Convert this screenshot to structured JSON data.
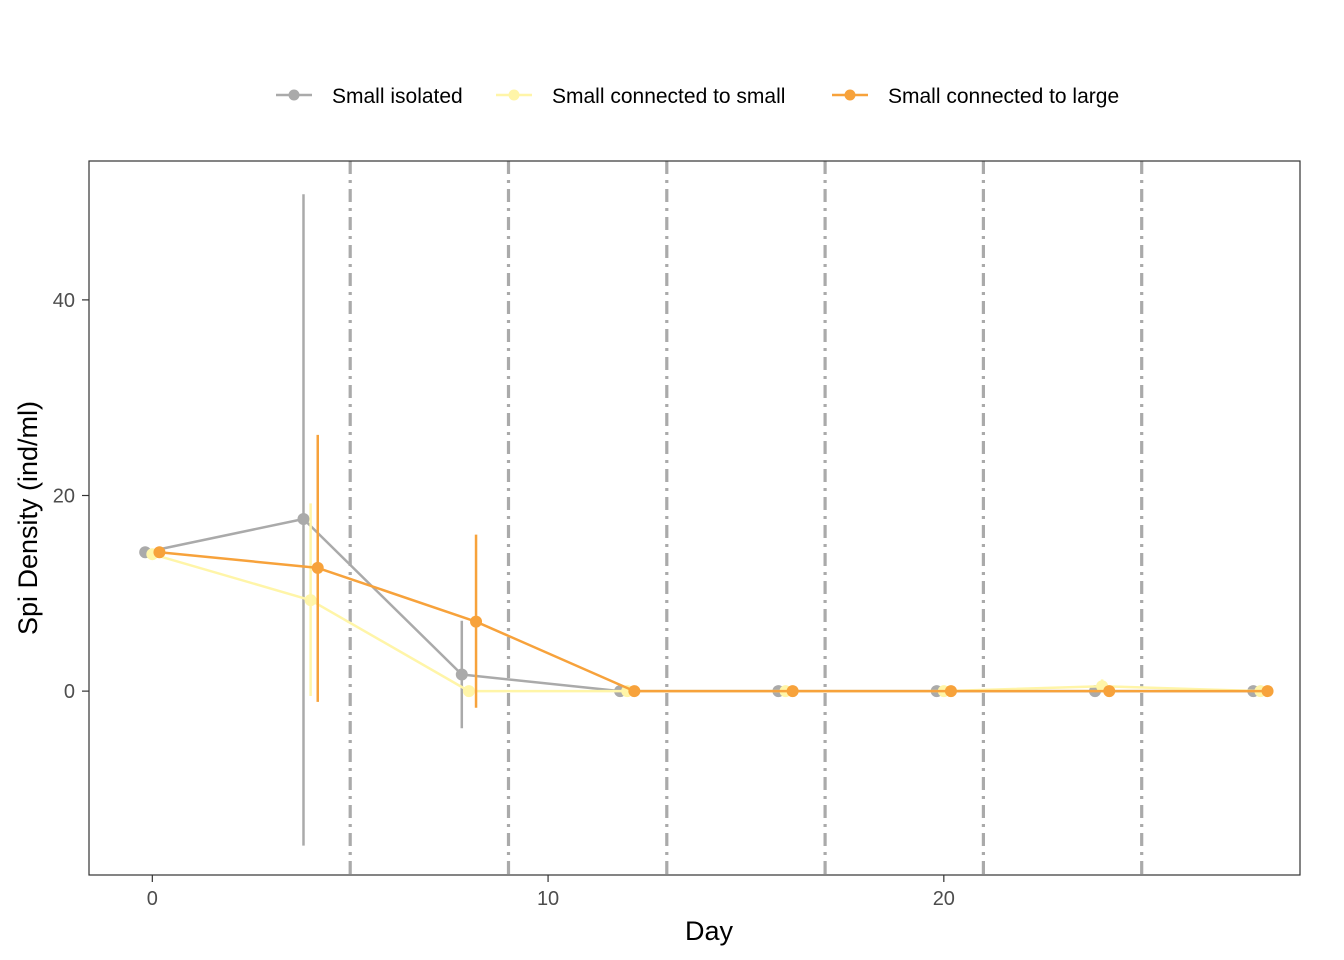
{
  "chart_data": {
    "type": "line",
    "title": "",
    "xlabel": "Day",
    "ylabel": "Spi Density (ind/ml)",
    "xlim": [
      -1.6,
      29
    ],
    "ylim": [
      -18.8,
      54.2
    ],
    "x_ticks": [
      0,
      10,
      20
    ],
    "y_ticks": [
      0,
      20,
      40
    ],
    "grid": false,
    "legend_position": "top",
    "vlines": [
      5,
      9,
      13,
      17,
      21,
      25
    ],
    "vline_color": "#aaaaaa",
    "series": [
      {
        "name": "Small isolated",
        "color": "#aaaaaa",
        "x": [
          -0.18,
          3.82,
          7.82,
          11.82,
          15.82,
          19.82,
          23.82,
          27.82
        ],
        "y": [
          14.2,
          17.6,
          1.7,
          0,
          0,
          0,
          0,
          0
        ],
        "err_low": [
          14.2,
          -15.8,
          -3.8,
          0,
          0,
          0,
          0,
          0
        ],
        "err_high": [
          14.2,
          50.8,
          7.2,
          0,
          0,
          0,
          0,
          0
        ]
      },
      {
        "name": "Small connected to small",
        "color": "#fff5a8",
        "x": [
          0,
          4,
          8,
          12,
          16,
          20,
          24,
          28
        ],
        "y": [
          14.0,
          9.3,
          0,
          0,
          0,
          0,
          0.5,
          0
        ],
        "err_low": [
          14.0,
          -0.5,
          0,
          0,
          0,
          0,
          -0.1,
          0
        ],
        "err_high": [
          14.0,
          19.2,
          0,
          0,
          0,
          0,
          1.2,
          0
        ]
      },
      {
        "name": "Small connected to large",
        "color": "#f7a23b",
        "x": [
          0.18,
          4.18,
          8.18,
          12.18,
          16.18,
          20.18,
          24.18,
          28.18
        ],
        "y": [
          14.2,
          12.6,
          7.1,
          0,
          0,
          0,
          0,
          0
        ],
        "err_low": [
          14.2,
          -1.1,
          -1.7,
          0,
          0,
          0,
          0,
          0
        ],
        "err_high": [
          14.2,
          26.2,
          16.0,
          0,
          0,
          0,
          0,
          0
        ]
      }
    ]
  }
}
